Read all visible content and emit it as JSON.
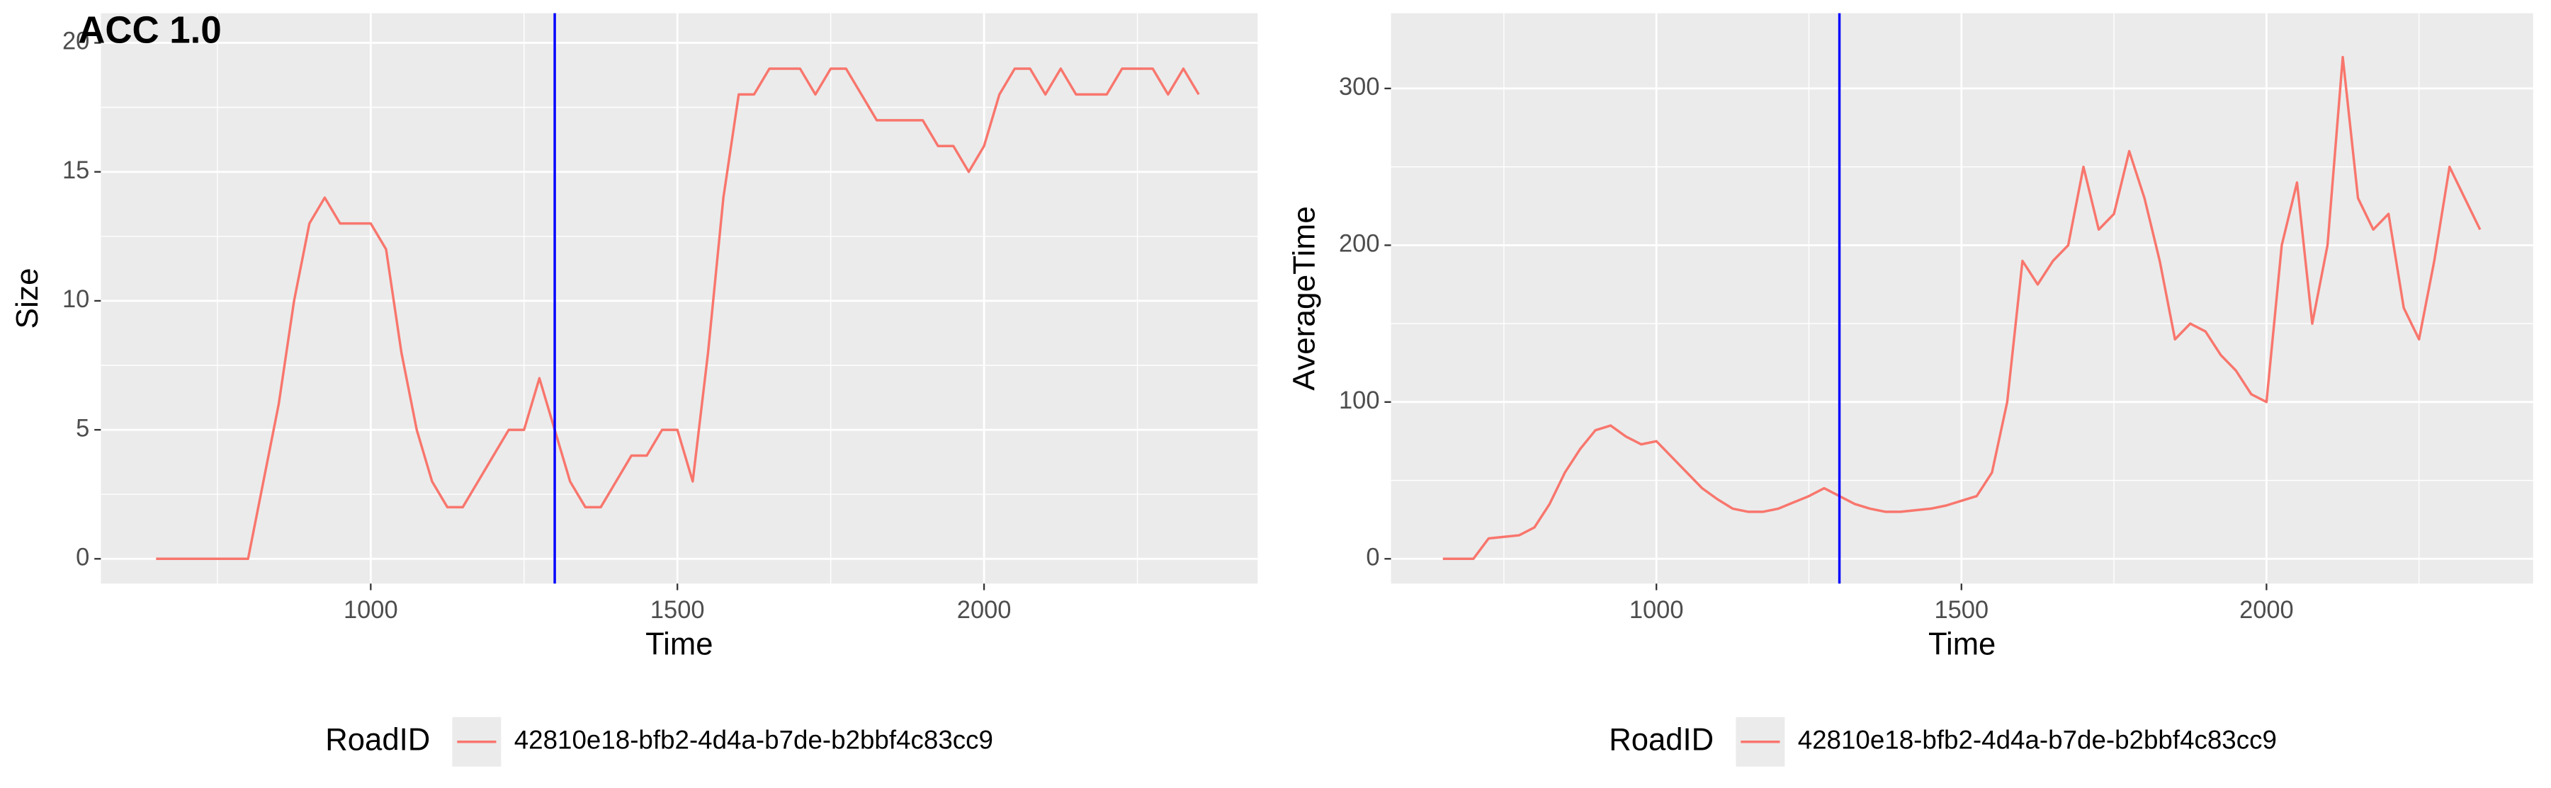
{
  "chart_data": [
    {
      "type": "line",
      "title": "ACC 1.0",
      "x_label": "Time",
      "y_label": "Size",
      "legend_title": "RoadID",
      "legend": "bottom",
      "grid": true,
      "xlim": [
        560,
        2446
      ],
      "ylim": [
        -0.96,
        21.15
      ],
      "xticks": [
        1000,
        1500,
        2000
      ],
      "yticks": [
        0,
        5,
        10,
        15,
        20
      ],
      "xminor": [
        750,
        1250,
        1750,
        2250
      ],
      "yminor": [
        2.5,
        7.5,
        12.5,
        17.5
      ],
      "vline": {
        "value": 1300,
        "color": "#0000ff"
      },
      "x": [
        650,
        675,
        700,
        725,
        750,
        775,
        800,
        825,
        850,
        875,
        900,
        925,
        950,
        975,
        1000,
        1025,
        1050,
        1075,
        1100,
        1125,
        1150,
        1175,
        1200,
        1225,
        1250,
        1275,
        1300,
        1325,
        1350,
        1375,
        1400,
        1425,
        1450,
        1475,
        1500,
        1525,
        1550,
        1575,
        1600,
        1625,
        1650,
        1675,
        1700,
        1725,
        1750,
        1775,
        1800,
        1825,
        1850,
        1875,
        1900,
        1925,
        1950,
        1975,
        2000,
        2025,
        2050,
        2075,
        2100,
        2125,
        2150,
        2175,
        2200,
        2225,
        2250,
        2275,
        2300,
        2325,
        2350
      ],
      "series": [
        {
          "name": "42810e18-bfb2-4d4a-b7de-b2bbf4c83cc9",
          "color": "#f8766d",
          "values": [
            0,
            0,
            0,
            0,
            0,
            0,
            0,
            3,
            6,
            10,
            13,
            14,
            13,
            13,
            13,
            12,
            8,
            5,
            3,
            2,
            2,
            3,
            4,
            5,
            5,
            7,
            5,
            3,
            2,
            2,
            3,
            4,
            4,
            5,
            5,
            3,
            8,
            14,
            18,
            18,
            19,
            19,
            19,
            18,
            19,
            19,
            18,
            17,
            17,
            17,
            17,
            16,
            16,
            15,
            16,
            18,
            19,
            19,
            18,
            19,
            18,
            18,
            18,
            19,
            19,
            19,
            18,
            19,
            18
          ]
        }
      ]
    },
    {
      "type": "line",
      "x_label": "Time",
      "y_label": "AverageTime",
      "legend_title": "RoadID",
      "legend": "bottom",
      "grid": true,
      "xlim": [
        565,
        2437
      ],
      "ylim": [
        -15.8,
        348
      ],
      "xticks": [
        1000,
        1500,
        2000
      ],
      "yticks": [
        0,
        100,
        200,
        300
      ],
      "xminor": [
        750,
        1250,
        1750,
        2250
      ],
      "yminor": [
        50,
        150,
        250
      ],
      "vline": {
        "value": 1300,
        "color": "#0000ff"
      },
      "x": [
        650,
        675,
        700,
        725,
        750,
        775,
        800,
        825,
        850,
        875,
        900,
        925,
        950,
        975,
        1000,
        1025,
        1050,
        1075,
        1100,
        1125,
        1150,
        1175,
        1200,
        1225,
        1250,
        1275,
        1300,
        1325,
        1350,
        1375,
        1400,
        1425,
        1450,
        1475,
        1500,
        1525,
        1550,
        1575,
        1600,
        1625,
        1650,
        1675,
        1700,
        1725,
        1750,
        1775,
        1800,
        1825,
        1850,
        1875,
        1900,
        1925,
        1950,
        1975,
        2000,
        2025,
        2050,
        2075,
        2100,
        2125,
        2150,
        2175,
        2200,
        2225,
        2250,
        2275,
        2300,
        2325,
        2350
      ],
      "series": [
        {
          "name": "42810e18-bfb2-4d4a-b7de-b2bbf4c83cc9",
          "color": "#f8766d",
          "values": [
            0,
            0,
            0,
            13,
            14,
            15,
            20,
            35,
            55,
            70,
            82,
            85,
            78,
            73,
            75,
            65,
            55,
            45,
            38,
            32,
            30,
            30,
            32,
            36,
            40,
            45,
            40,
            35,
            32,
            30,
            30,
            31,
            32,
            34,
            37,
            40,
            55,
            100,
            190,
            175,
            190,
            200,
            250,
            210,
            220,
            260,
            230,
            190,
            140,
            150,
            145,
            130,
            120,
            105,
            100,
            200,
            240,
            150,
            200,
            320,
            230,
            210,
            220,
            160,
            140,
            190,
            250,
            230,
            210
          ]
        }
      ]
    }
  ]
}
